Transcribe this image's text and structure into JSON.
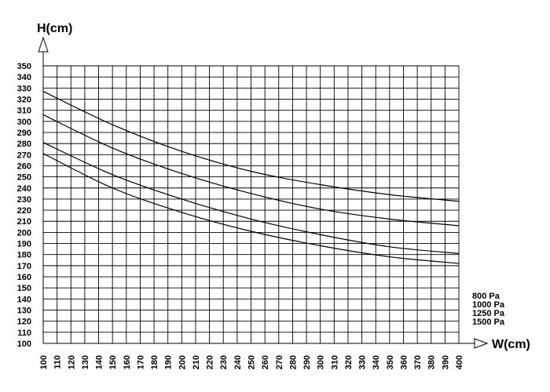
{
  "chart_data": {
    "type": "line",
    "title": "",
    "xlabel": "W(cm)",
    "ylabel": "H(cm)",
    "xlim": [
      100,
      400
    ],
    "ylim": [
      100,
      350
    ],
    "x_step": 10,
    "y_step": 10,
    "grid": true,
    "legend_position": "right",
    "x": [
      100,
      150,
      200,
      250,
      300,
      350,
      400
    ],
    "series": [
      {
        "name": "800 Pa",
        "values": [
          327,
          297,
          273,
          255,
          243,
          234,
          228
        ]
      },
      {
        "name": "1000 Pa",
        "values": [
          306,
          276,
          253,
          235,
          221,
          212,
          206
        ]
      },
      {
        "name": "1250 Pa",
        "values": [
          281,
          252,
          230,
          212,
          198,
          187,
          181
        ]
      },
      {
        "name": "1500 Pa",
        "values": [
          271,
          240,
          218,
          201,
          188,
          178,
          172
        ]
      }
    ],
    "x_ticks": [
      "100",
      "110",
      "120",
      "130",
      "140",
      "150",
      "160",
      "170",
      "180",
      "190",
      "200",
      "210",
      "220",
      "230",
      "240",
      "250",
      "260",
      "270",
      "280",
      "290",
      "300",
      "310",
      "320",
      "330",
      "340",
      "350",
      "360",
      "370",
      "380",
      "390",
      "400"
    ],
    "y_ticks": [
      "350",
      "340",
      "330",
      "320",
      "310",
      "300",
      "290",
      "280",
      "270",
      "260",
      "250",
      "240",
      "230",
      "220",
      "210",
      "200",
      "190",
      "180",
      "170",
      "160",
      "150",
      "140",
      "130",
      "120",
      "110",
      "100"
    ]
  }
}
